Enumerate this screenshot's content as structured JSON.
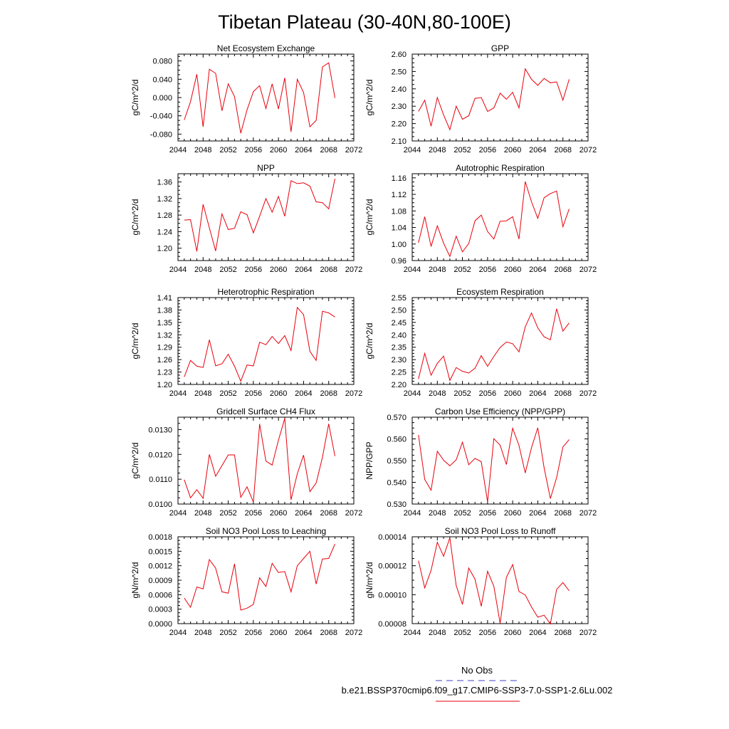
{
  "title": "Tibetan Plateau (30-40N,80-100E)",
  "colors": {
    "series": "#e8000b",
    "obs": "#4040d0",
    "axis": "#000000"
  },
  "legend": {
    "entries": [
      {
        "label": "No Obs",
        "style": "dashed",
        "color": "#4040d0"
      },
      {
        "label": "b.e21.BSSP370cmip6.f09_g17.CMIP6-SSP3-7.0-SSP1-2.6Lu.002",
        "style": "solid",
        "color": "#e8000b"
      }
    ]
  },
  "chart_data": [
    {
      "type": "line",
      "title": "Net Ecosystem Exchange",
      "ylabel": "gC/m^2/d",
      "xlim": [
        2044,
        2072
      ],
      "xticks": [
        2044,
        2048,
        2052,
        2056,
        2060,
        2064,
        2068,
        2072
      ],
      "ylim": [
        -0.095,
        0.095
      ],
      "yticks": [
        -0.08,
        -0.04,
        0.0,
        0.04,
        0.08
      ],
      "ydec": 3,
      "x": [
        2045,
        2046,
        2047,
        2048,
        2049,
        2050,
        2051,
        2052,
        2053,
        2054,
        2055,
        2056,
        2057,
        2058,
        2059,
        2060,
        2061,
        2062,
        2063,
        2064,
        2065,
        2066,
        2067,
        2068,
        2069
      ],
      "series": [
        {
          "values": [
            -0.049,
            -0.009,
            0.051,
            -0.064,
            0.062,
            0.053,
            -0.029,
            0.03,
            0.002,
            -0.078,
            -0.027,
            0.013,
            0.026,
            -0.024,
            0.03,
            -0.025,
            0.043,
            -0.075,
            0.04,
            0.011,
            -0.064,
            -0.05,
            0.067,
            0.076,
            -0.001
          ]
        }
      ]
    },
    {
      "type": "line",
      "title": "GPP",
      "ylabel": "gC/m^2/d",
      "xlim": [
        2044,
        2072
      ],
      "xticks": [
        2044,
        2048,
        2052,
        2056,
        2060,
        2064,
        2068,
        2072
      ],
      "ylim": [
        2.1,
        2.6
      ],
      "yticks": [
        2.1,
        2.2,
        2.3,
        2.4,
        2.5,
        2.6
      ],
      "ydec": 2,
      "x": [
        2045,
        2046,
        2047,
        2048,
        2049,
        2050,
        2051,
        2052,
        2053,
        2054,
        2055,
        2056,
        2057,
        2058,
        2059,
        2060,
        2061,
        2062,
        2063,
        2064,
        2065,
        2066,
        2067,
        2068,
        2069
      ],
      "series": [
        {
          "values": [
            2.27,
            2.335,
            2.185,
            2.35,
            2.25,
            2.165,
            2.3,
            2.225,
            2.245,
            2.345,
            2.35,
            2.27,
            2.29,
            2.375,
            2.34,
            2.38,
            2.29,
            2.515,
            2.455,
            2.42,
            2.46,
            2.435,
            2.44,
            2.335,
            2.455
          ]
        }
      ]
    },
    {
      "type": "line",
      "title": "NPP",
      "ylabel": "gC/m^2/d",
      "xlim": [
        2044,
        2072
      ],
      "xticks": [
        2044,
        2048,
        2052,
        2056,
        2060,
        2064,
        2068,
        2072
      ],
      "ylim": [
        1.17,
        1.38
      ],
      "yticks": [
        1.2,
        1.24,
        1.28,
        1.32,
        1.36
      ],
      "ydec": 2,
      "x": [
        2045,
        2046,
        2047,
        2048,
        2049,
        2050,
        2051,
        2052,
        2053,
        2054,
        2055,
        2056,
        2057,
        2058,
        2059,
        2060,
        2061,
        2062,
        2063,
        2064,
        2065,
        2066,
        2067,
        2068,
        2069
      ],
      "series": [
        {
          "values": [
            1.268,
            1.269,
            1.192,
            1.306,
            1.249,
            1.193,
            1.283,
            1.245,
            1.248,
            1.288,
            1.281,
            1.237,
            1.277,
            1.32,
            1.287,
            1.325,
            1.277,
            1.363,
            1.356,
            1.358,
            1.35,
            1.312,
            1.31,
            1.295,
            1.368
          ]
        }
      ]
    },
    {
      "type": "line",
      "title": "Autotrophic Respiration",
      "ylabel": "gC/m^2/d",
      "xlim": [
        2044,
        2072
      ],
      "xticks": [
        2044,
        2048,
        2052,
        2056,
        2060,
        2064,
        2068,
        2072
      ],
      "ylim": [
        0.96,
        1.17
      ],
      "yticks": [
        0.96,
        1.0,
        1.04,
        1.08,
        1.12,
        1.16
      ],
      "ydec": 2,
      "x": [
        2045,
        2046,
        2047,
        2048,
        2049,
        2050,
        2051,
        2052,
        2053,
        2054,
        2055,
        2056,
        2057,
        2058,
        2059,
        2060,
        2061,
        2062,
        2063,
        2064,
        2065,
        2066,
        2067,
        2068,
        2069
      ],
      "series": [
        {
          "values": [
            1.003,
            1.066,
            0.994,
            1.044,
            1.002,
            0.97,
            1.019,
            0.981,
            1.001,
            1.056,
            1.07,
            1.03,
            1.012,
            1.055,
            1.056,
            1.066,
            1.012,
            1.151,
            1.102,
            1.062,
            1.112,
            1.122,
            1.128,
            1.042,
            1.085
          ]
        }
      ]
    },
    {
      "type": "line",
      "title": "Heterotrophic Respiration",
      "ylabel": "gC/m^2/d",
      "xlim": [
        2044,
        2072
      ],
      "xticks": [
        2044,
        2048,
        2052,
        2056,
        2060,
        2064,
        2068,
        2072
      ],
      "ylim": [
        1.2,
        1.41
      ],
      "yticks": [
        1.2,
        1.23,
        1.26,
        1.29,
        1.32,
        1.35,
        1.38,
        1.41
      ],
      "ydec": 2,
      "x": [
        2045,
        2046,
        2047,
        2048,
        2049,
        2050,
        2051,
        2052,
        2053,
        2054,
        2055,
        2056,
        2057,
        2058,
        2059,
        2060,
        2061,
        2062,
        2063,
        2064,
        2065,
        2066,
        2067,
        2068,
        2069
      ],
      "series": [
        {
          "values": [
            1.218,
            1.258,
            1.244,
            1.241,
            1.308,
            1.245,
            1.25,
            1.273,
            1.244,
            1.208,
            1.247,
            1.245,
            1.302,
            1.296,
            1.316,
            1.299,
            1.318,
            1.282,
            1.386,
            1.369,
            1.28,
            1.258,
            1.377,
            1.373,
            1.363
          ]
        }
      ]
    },
    {
      "type": "line",
      "title": "Ecosystem Respiration",
      "ylabel": "gC/m^2/d",
      "xlim": [
        2044,
        2072
      ],
      "xticks": [
        2044,
        2048,
        2052,
        2056,
        2060,
        2064,
        2068,
        2072
      ],
      "ylim": [
        2.2,
        2.55
      ],
      "yticks": [
        2.2,
        2.25,
        2.3,
        2.35,
        2.4,
        2.45,
        2.5,
        2.55
      ],
      "ydec": 2,
      "x": [
        2045,
        2046,
        2047,
        2048,
        2049,
        2050,
        2051,
        2052,
        2053,
        2054,
        2055,
        2056,
        2057,
        2058,
        2059,
        2060,
        2061,
        2062,
        2063,
        2064,
        2065,
        2066,
        2067,
        2068,
        2069
      ],
      "series": [
        {
          "values": [
            2.222,
            2.325,
            2.237,
            2.285,
            2.314,
            2.216,
            2.268,
            2.253,
            2.246,
            2.265,
            2.316,
            2.273,
            2.313,
            2.349,
            2.371,
            2.364,
            2.331,
            2.432,
            2.488,
            2.428,
            2.392,
            2.38,
            2.505,
            2.415,
            2.448
          ]
        }
      ]
    },
    {
      "type": "line",
      "title": "Gridcell Surface CH4 Flux",
      "ylabel": "gC/m^2/d",
      "xlim": [
        2044,
        2072
      ],
      "xticks": [
        2044,
        2048,
        2052,
        2056,
        2060,
        2064,
        2068,
        2072
      ],
      "ylim": [
        0.01,
        0.0135
      ],
      "yticks": [
        0.01,
        0.011,
        0.012,
        0.013
      ],
      "ydec": 4,
      "x": [
        2045,
        2046,
        2047,
        2048,
        2049,
        2050,
        2051,
        2052,
        2053,
        2054,
        2055,
        2056,
        2057,
        2058,
        2059,
        2060,
        2061,
        2062,
        2063,
        2064,
        2065,
        2066,
        2067,
        2068,
        2069
      ],
      "series": [
        {
          "values": [
            0.01098,
            0.01025,
            0.01058,
            0.01023,
            0.012,
            0.01112,
            0.01155,
            0.01198,
            0.01198,
            0.01027,
            0.01069,
            0.01008,
            0.01323,
            0.01173,
            0.01157,
            0.01257,
            0.01345,
            0.01017,
            0.01122,
            0.01197,
            0.0105,
            0.01085,
            0.01188,
            0.01323,
            0.01193
          ]
        }
      ]
    },
    {
      "type": "line",
      "title": "Carbon Use Efficiency (NPP/GPP)",
      "ylabel": "NPP/GPP",
      "xlim": [
        2044,
        2072
      ],
      "xticks": [
        2044,
        2048,
        2052,
        2056,
        2060,
        2064,
        2068,
        2072
      ],
      "ylim": [
        0.53,
        0.57
      ],
      "yticks": [
        0.53,
        0.54,
        0.55,
        0.56,
        0.57
      ],
      "ydec": 3,
      "x": [
        2045,
        2046,
        2047,
        2048,
        2049,
        2050,
        2051,
        2052,
        2053,
        2054,
        2055,
        2056,
        2057,
        2058,
        2059,
        2060,
        2061,
        2062,
        2063,
        2064,
        2065,
        2066,
        2067,
        2068,
        2069
      ],
      "series": [
        {
          "values": [
            0.5618,
            0.5413,
            0.5364,
            0.5543,
            0.5502,
            0.5476,
            0.5504,
            0.5585,
            0.5481,
            0.551,
            0.5495,
            0.531,
            0.5601,
            0.5571,
            0.5482,
            0.5649,
            0.557,
            0.5443,
            0.556,
            0.5651,
            0.5467,
            0.5325,
            0.5422,
            0.5563,
            0.5597
          ]
        }
      ]
    },
    {
      "type": "line",
      "title": "Soil NO3 Pool Loss to Leaching",
      "ylabel": "gN/m^2/d",
      "xlim": [
        2044,
        2072
      ],
      "xticks": [
        2044,
        2048,
        2052,
        2056,
        2060,
        2064,
        2068,
        2072
      ],
      "ylim": [
        0.0,
        0.0018
      ],
      "yticks": [
        0.0,
        0.0003,
        0.0006,
        0.0009,
        0.0012,
        0.0015,
        0.0018
      ],
      "ydec": 4,
      "x": [
        2045,
        2046,
        2047,
        2048,
        2049,
        2050,
        2051,
        2052,
        2053,
        2054,
        2055,
        2056,
        2057,
        2058,
        2059,
        2060,
        2061,
        2062,
        2063,
        2064,
        2065,
        2066,
        2067,
        2068,
        2069
      ],
      "series": [
        {
          "values": [
            0.00053,
            0.00034,
            0.00076,
            0.00072,
            0.00133,
            0.00115,
            0.00066,
            0.00063,
            0.00124,
            0.00028,
            0.00032,
            0.0004,
            0.00095,
            0.00077,
            0.00125,
            0.00106,
            0.00108,
            0.00066,
            0.0012,
            0.00135,
            0.0015,
            0.00082,
            0.00134,
            0.00135,
            0.00165
          ]
        }
      ]
    },
    {
      "type": "line",
      "title": "Soil NO3 Pool Loss to Runoff",
      "ylabel": "gN/m^2/d",
      "xlim": [
        2044,
        2072
      ],
      "xticks": [
        2044,
        2048,
        2052,
        2056,
        2060,
        2064,
        2068,
        2072
      ],
      "ylim": [
        8e-05,
        0.00014
      ],
      "yticks": [
        8e-05,
        0.0001,
        0.00012,
        0.00014
      ],
      "ydec": 5,
      "x": [
        2045,
        2046,
        2047,
        2048,
        2049,
        2050,
        2051,
        2052,
        2053,
        2054,
        2055,
        2056,
        2057,
        2058,
        2059,
        2060,
        2061,
        2062,
        2063,
        2064,
        2065,
        2066,
        2067,
        2068,
        2069
      ],
      "series": [
        {
          "values": [
            0.0001235,
            0.0001047,
            0.0001168,
            0.0001362,
            0.0001265,
            0.0001393,
            0.0001063,
            9.33e-05,
            0.0001184,
            0.0001107,
            9.2e-05,
            0.0001162,
            0.0001058,
            8.02e-05,
            0.0001119,
            0.0001208,
            0.0001022,
            9.98e-05,
            9.15e-05,
            8.45e-05,
            8.58e-05,
            7.98e-05,
            0.0001037,
            0.0001084,
            0.0001026
          ]
        }
      ]
    }
  ]
}
